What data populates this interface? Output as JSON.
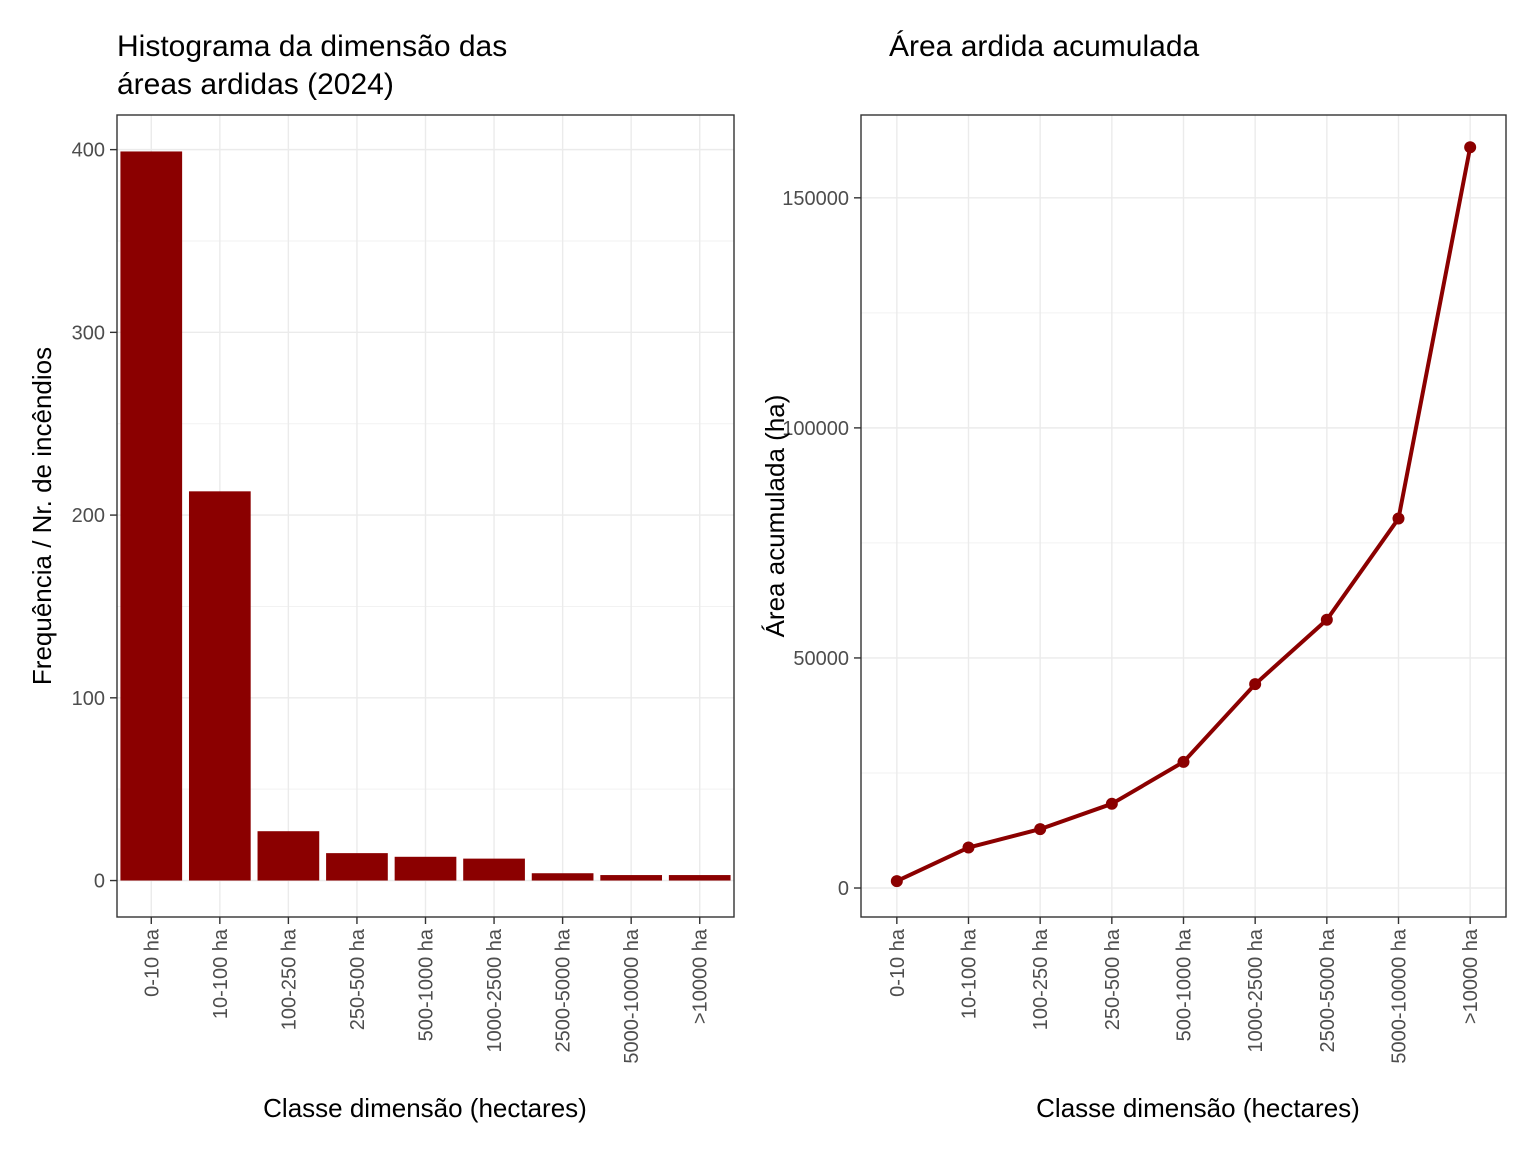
{
  "colors": {
    "bar": "#8b0000",
    "line": "#8b0000"
  },
  "chart_data": [
    {
      "type": "bar",
      "title_lines": [
        "Histograma da dimensão das",
        "áreas ardidas (2024)"
      ],
      "xlabel": "Classe dimensão (hectares)",
      "ylabel": "Frequência / Nr. de incêndios",
      "categories": [
        "0-10 ha",
        "10-100 ha",
        "100-250 ha",
        "250-500 ha",
        "500-1000 ha",
        "1000-2500 ha",
        "2500-5000 ha",
        "5000-10000 ha",
        ">10000 ha"
      ],
      "values": [
        399,
        213,
        27,
        15,
        13,
        12,
        4,
        3,
        3
      ],
      "ylim": [
        -19.95,
        418.95
      ],
      "yticks": [
        0,
        100,
        200,
        300,
        400
      ],
      "grid": true
    },
    {
      "type": "line",
      "title_lines": [
        "Área ardida acumulada"
      ],
      "xlabel": "Classe dimensão (hectares)",
      "ylabel": "Área acumulada (ha)",
      "categories": [
        "0-10 ha",
        "10-100 ha",
        "100-250 ha",
        "250-500 ha",
        "500-1000 ha",
        "1000-2500 ha",
        "2500-5000 ha",
        "5000-10000 ha",
        ">10000 ha"
      ],
      "values": [
        1500,
        8800,
        12800,
        18300,
        27400,
        44300,
        58300,
        80300,
        161000
      ],
      "ylim": [
        -6300,
        168000
      ],
      "yticks": [
        0,
        50000,
        100000,
        150000
      ],
      "markers": true,
      "grid": true
    }
  ]
}
